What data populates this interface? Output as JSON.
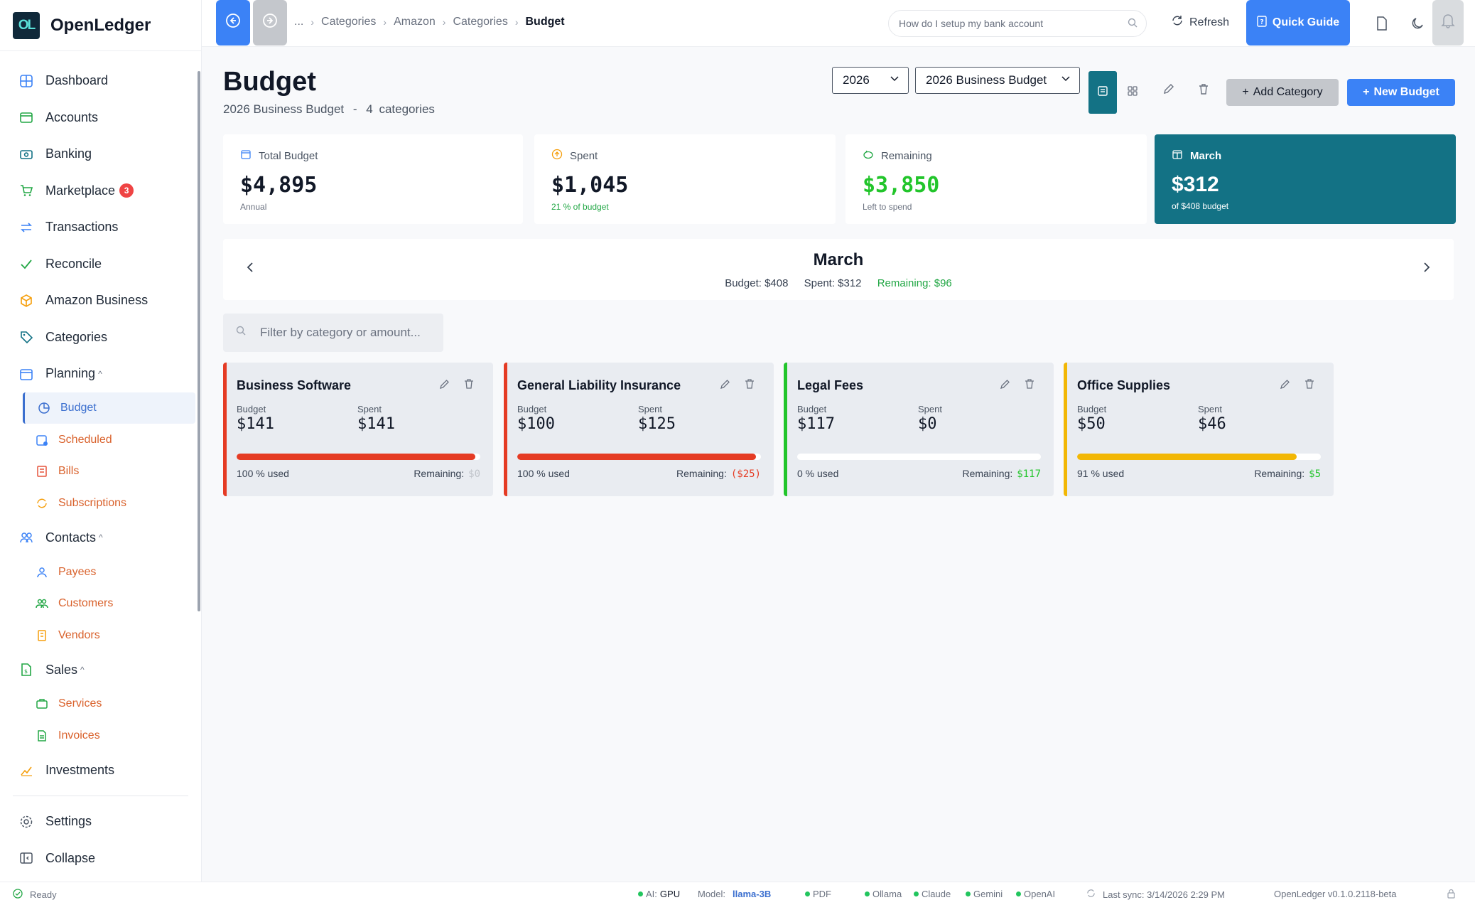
{
  "app": {
    "name": "OpenLedger",
    "logo_text": "OL"
  },
  "sidebar": {
    "items": [
      {
        "label": "Dashboard",
        "icon": "dashboard-icon"
      },
      {
        "label": "Accounts",
        "icon": "wallet-icon"
      },
      {
        "label": "Banking",
        "icon": "bank-icon"
      },
      {
        "label": "Marketplace",
        "icon": "cart-icon",
        "badge": "3"
      },
      {
        "label": "Transactions",
        "icon": "arrows-icon"
      },
      {
        "label": "Reconcile",
        "icon": "check-icon"
      },
      {
        "label": "Amazon Business",
        "icon": "box-icon"
      },
      {
        "label": "Categories",
        "icon": "tag-icon"
      },
      {
        "label": "Planning",
        "icon": "calendar-icon"
      }
    ],
    "planning_sub": [
      {
        "label": "Budget",
        "icon": "pie-icon"
      },
      {
        "label": "Scheduled",
        "icon": "clock-icon"
      },
      {
        "label": "Bills",
        "icon": "bill-icon"
      },
      {
        "label": "Subscriptions",
        "icon": "refresh-icon"
      }
    ],
    "contacts": {
      "label": "Contacts",
      "icon": "people-icon"
    },
    "contacts_sub": [
      {
        "label": "Payees",
        "icon": "user-icon"
      },
      {
        "label": "Customers",
        "icon": "users-icon"
      },
      {
        "label": "Vendors",
        "icon": "building-icon"
      }
    ],
    "sales": {
      "label": "Sales",
      "icon": "document-icon"
    },
    "sales_sub": [
      {
        "label": "Services",
        "icon": "briefcase-icon"
      },
      {
        "label": "Invoices",
        "icon": "invoice-icon"
      }
    ],
    "investments": {
      "label": "Investments",
      "icon": "chart-icon"
    },
    "settings": {
      "label": "Settings",
      "icon": "gear-icon"
    },
    "collapse": {
      "label": "Collapse",
      "icon": "collapse-icon"
    }
  },
  "topbar": {
    "breadcrumbs": [
      "...",
      "Categories",
      "Amazon",
      "Categories",
      "Budget"
    ],
    "search_placeholder": "How do I setup my bank account",
    "refresh_label": "Refresh",
    "quick_guide_label": "Quick Guide"
  },
  "page": {
    "title": "Budget",
    "subtitle_budget": "2026 Business Budget",
    "subtitle_sep": "-",
    "subtitle_count": "4",
    "subtitle_unit": "categories",
    "year_select": "2026",
    "budget_select": "2026 Business Budget",
    "add_category_label": "Add Category",
    "new_budget_label": "New Budget"
  },
  "stats": {
    "total": {
      "label": "Total Budget",
      "value": "$4,895",
      "note": "Annual"
    },
    "spent": {
      "label": "Spent",
      "value": "$1,045",
      "note": "21 % of budget"
    },
    "remaining": {
      "label": "Remaining",
      "value": "$3,850",
      "note": "Left to spend"
    },
    "month": {
      "label": "March",
      "value": "$312",
      "note": "of $408 budget"
    }
  },
  "month_bar": {
    "title": "March",
    "budget": "Budget: $408",
    "spent": "Spent: $312",
    "remaining": "Remaining: $96"
  },
  "filter_placeholder": "Filter by category or amount...",
  "colors": {
    "accent": "#3b82f6",
    "teal": "#137285",
    "red": "#e53b24",
    "green": "#22c52b",
    "amber": "#f2b705"
  },
  "cards": [
    {
      "title": "Business Software",
      "budget": "$141",
      "spent": "$141",
      "used": "100 % used",
      "remaining_label": "Remaining:",
      "remaining": "$0",
      "pct": 0.98,
      "color": "#e53b24",
      "rem_color": "#c0c4ca"
    },
    {
      "title": "General Liability Insurance",
      "budget": "$100",
      "spent": "$125",
      "used": "100 % used",
      "remaining_label": "Remaining:",
      "remaining": "($25)",
      "pct": 0.98,
      "color": "#e53b24",
      "rem_color": "#e53b24"
    },
    {
      "title": "Legal Fees",
      "budget": "$117",
      "spent": "$0",
      "used": "0 % used",
      "remaining_label": "Remaining:",
      "remaining": "$117",
      "pct": 0,
      "color": "#22c52b",
      "rem_color": "#22c52b"
    },
    {
      "title": "Office Supplies",
      "budget": "$50",
      "spent": "$46",
      "used": "91 % used",
      "remaining_label": "Remaining:",
      "remaining": "$5",
      "pct": 0.9,
      "color": "#f2b705",
      "rem_color": "#22c52b"
    }
  ],
  "card_labels": {
    "budget": "Budget",
    "spent": "Spent"
  },
  "statusbar": {
    "ready": "Ready",
    "ai_label": "AI:",
    "ai_value": "GPU",
    "model_label": "Model:",
    "model_value": "llama-3B",
    "pdf": "PDF",
    "ollama": "Ollama",
    "claude": "Claude",
    "gemini": "Gemini",
    "openai": "OpenAI",
    "last_sync": "Last sync: 3/14/2026 2:29 PM",
    "version": "OpenLedger v0.1.0.2118-beta"
  }
}
